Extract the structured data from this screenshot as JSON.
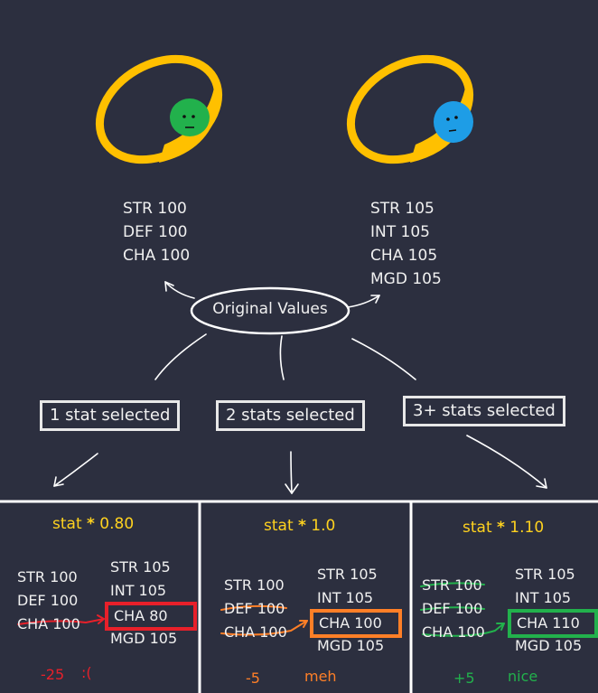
{
  "colors": {
    "background": "#2c2f3f",
    "ring_gold": "#ffc000",
    "gem_green": "#22b14c",
    "gem_blue": "#1e9de6",
    "title_yellow": "#ffd21f",
    "red": "#e8202a",
    "orange": "#ff7f27",
    "green": "#22b14c",
    "line": "#ffffff"
  },
  "icons": {
    "left_ring": "green-gem-ring-icon",
    "right_ring": "blue-gem-ring-icon"
  },
  "left_ring_stats": [
    "STR 100",
    "DEF 100",
    "CHA 100"
  ],
  "right_ring_stats": [
    "STR 105",
    "INT 105",
    "CHA 105",
    "MGD 105"
  ],
  "center_label": "Original Values",
  "branches": [
    "1 stat selected",
    "2 stats selected",
    "3+ stats selected"
  ],
  "panels": [
    {
      "title_prefix": "stat ",
      "operator": "*",
      "title_value": " 0.80",
      "left": [
        "STR 100",
        "DEF 100",
        "CHA 100"
      ],
      "right_top": [
        "STR 105",
        "INT 105"
      ],
      "highlight": "CHA   80",
      "right_bottom": "MGD 105",
      "delta": "-25",
      "reaction": ":("
    },
    {
      "title_prefix": "stat ",
      "operator": "*",
      "title_value": " 1.0",
      "left": [
        "STR 100",
        "DEF 100",
        "CHA 100"
      ],
      "right_top": [
        "STR 105",
        "INT 105"
      ],
      "highlight": "CHA  100",
      "right_bottom": "MGD 105",
      "delta": "-5",
      "reaction": "meh"
    },
    {
      "title_prefix": "stat ",
      "operator": "*",
      "title_value": " 1.10",
      "left": [
        "STR 100",
        "DEF 100",
        "CHA 100"
      ],
      "right_top": [
        "STR 105",
        "INT 105"
      ],
      "highlight": "CHA  110",
      "right_bottom": "MGD 105",
      "delta": "+5",
      "reaction": "nice"
    }
  ]
}
